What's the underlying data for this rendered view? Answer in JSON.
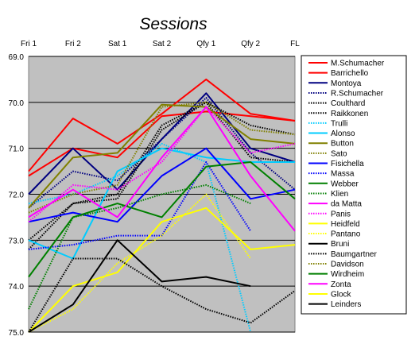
{
  "chart_data": {
    "type": "line",
    "title": "Sessions",
    "xlabel": "",
    "ylabel": "",
    "categories": [
      "Fri 1",
      "Fri 2",
      "Sat 1",
      "Sat 2",
      "Qfy 1",
      "Qfy 2",
      "FL"
    ],
    "ylim": [
      69.0,
      75.0
    ],
    "y_inverted": true,
    "yticks": [
      "69.0",
      "70.0",
      "71.0",
      "72.0",
      "73.0",
      "74.0",
      "75.0"
    ],
    "grid": "horizontal",
    "plot_background": "#c0c0c0",
    "legend_position": "right",
    "series": [
      {
        "name": "M.Schumacher",
        "color": "#ff0000",
        "dash": "solid",
        "values": [
          71.6,
          71.0,
          71.2,
          70.3,
          70.2,
          70.3,
          70.4
        ]
      },
      {
        "name": "Barrichello",
        "color": "#ff0000",
        "dash": "solid",
        "values": [
          71.5,
          70.35,
          70.9,
          70.25,
          69.5,
          70.25,
          70.4
        ]
      },
      {
        "name": "Montoya",
        "color": "#000080",
        "dash": "solid",
        "values": [
          72.0,
          71.0,
          71.9,
          70.8,
          69.8,
          71.0,
          71.3
        ]
      },
      {
        "name": "R.Schumacher",
        "color": "#000080",
        "dash": "dotted",
        "values": [
          72.3,
          71.5,
          71.7,
          70.8,
          69.9,
          71.1,
          71.9
        ]
      },
      {
        "name": "Coulthard",
        "color": "#000000",
        "dash": "dotted",
        "values": [
          73.2,
          72.2,
          72.0,
          70.5,
          70.0,
          70.5,
          70.7
        ]
      },
      {
        "name": "Raikkonen",
        "color": "#000000",
        "dash": "dotted",
        "values": [
          73.0,
          72.2,
          72.1,
          70.6,
          70.0,
          71.2,
          71.3
        ]
      },
      {
        "name": "Trulli",
        "color": "#00ccff",
        "dash": "dotted",
        "values": [
          72.2,
          72.0,
          71.6,
          70.9,
          71.3,
          75.0,
          null
        ]
      },
      {
        "name": "Alonso",
        "color": "#00ccff",
        "dash": "solid",
        "values": [
          73.0,
          73.4,
          71.5,
          71.0,
          71.2,
          71.3,
          71.3
        ]
      },
      {
        "name": "Button",
        "color": "#808000",
        "dash": "solid",
        "values": [
          72.3,
          71.2,
          71.1,
          70.05,
          70.1,
          70.8,
          70.9
        ]
      },
      {
        "name": "Sato",
        "color": "#808000",
        "dash": "dotted",
        "values": [
          72.4,
          72.0,
          71.8,
          70.1,
          70.0,
          70.6,
          70.7
        ]
      },
      {
        "name": "Fisichella",
        "color": "#0000ff",
        "dash": "solid",
        "values": [
          72.6,
          72.4,
          72.6,
          71.6,
          71.0,
          72.1,
          71.9
        ]
      },
      {
        "name": "Massa",
        "color": "#0000ff",
        "dash": "dotted",
        "values": [
          73.2,
          73.1,
          72.9,
          72.9,
          71.3,
          72.8,
          null
        ]
      },
      {
        "name": "Webber",
        "color": "#008000",
        "dash": "solid",
        "values": [
          73.8,
          72.5,
          72.2,
          72.5,
          71.4,
          71.3,
          72.1
        ]
      },
      {
        "name": "Klien",
        "color": "#008000",
        "dash": "dotted",
        "values": [
          74.5,
          72.5,
          72.3,
          72.0,
          71.8,
          72.2,
          null
        ]
      },
      {
        "name": "da Matta",
        "color": "#ff00ff",
        "dash": "solid",
        "values": [
          72.5,
          71.9,
          72.5,
          71.2,
          70.1,
          71.6,
          72.8
        ]
      },
      {
        "name": "Panis",
        "color": "#ff00ff",
        "dash": "dotted",
        "values": [
          72.6,
          71.8,
          71.9,
          71.3,
          70.1,
          71.1,
          70.9
        ]
      },
      {
        "name": "Heidfeld",
        "color": "#ffff00",
        "dash": "solid",
        "values": [
          75.0,
          74.0,
          73.7,
          72.6,
          72.3,
          73.2,
          73.1
        ]
      },
      {
        "name": "Pantano",
        "color": "#ffff00",
        "dash": "dotted",
        "values": [
          75.0,
          74.5,
          73.5,
          72.9,
          72.0,
          73.4,
          null
        ]
      },
      {
        "name": "Bruni",
        "color": "#000000",
        "dash": "solid",
        "values": [
          75.0,
          74.4,
          73.0,
          73.9,
          73.8,
          74.0,
          null
        ]
      },
      {
        "name": "Baumgartner",
        "color": "#000000",
        "dash": "dotted",
        "values": [
          75.0,
          73.4,
          73.4,
          74.0,
          74.5,
          74.8,
          74.1
        ]
      },
      {
        "name": "Davidson",
        "color": "#808000",
        "dash": "dotted",
        "values": [
          null,
          null,
          null,
          null,
          null,
          null,
          null
        ]
      },
      {
        "name": "Wirdheim",
        "color": "#008000",
        "dash": "solid",
        "values": [
          null,
          null,
          null,
          null,
          null,
          null,
          null
        ]
      },
      {
        "name": "Zonta",
        "color": "#ff00ff",
        "dash": "solid",
        "values": [
          null,
          null,
          null,
          null,
          null,
          null,
          null
        ]
      },
      {
        "name": "Glock",
        "color": "#ffff00",
        "dash": "solid",
        "values": [
          null,
          null,
          null,
          null,
          null,
          null,
          null
        ]
      },
      {
        "name": "Leinders",
        "color": "#000000",
        "dash": "solid",
        "values": [
          null,
          null,
          null,
          null,
          null,
          null,
          null
        ]
      }
    ]
  }
}
